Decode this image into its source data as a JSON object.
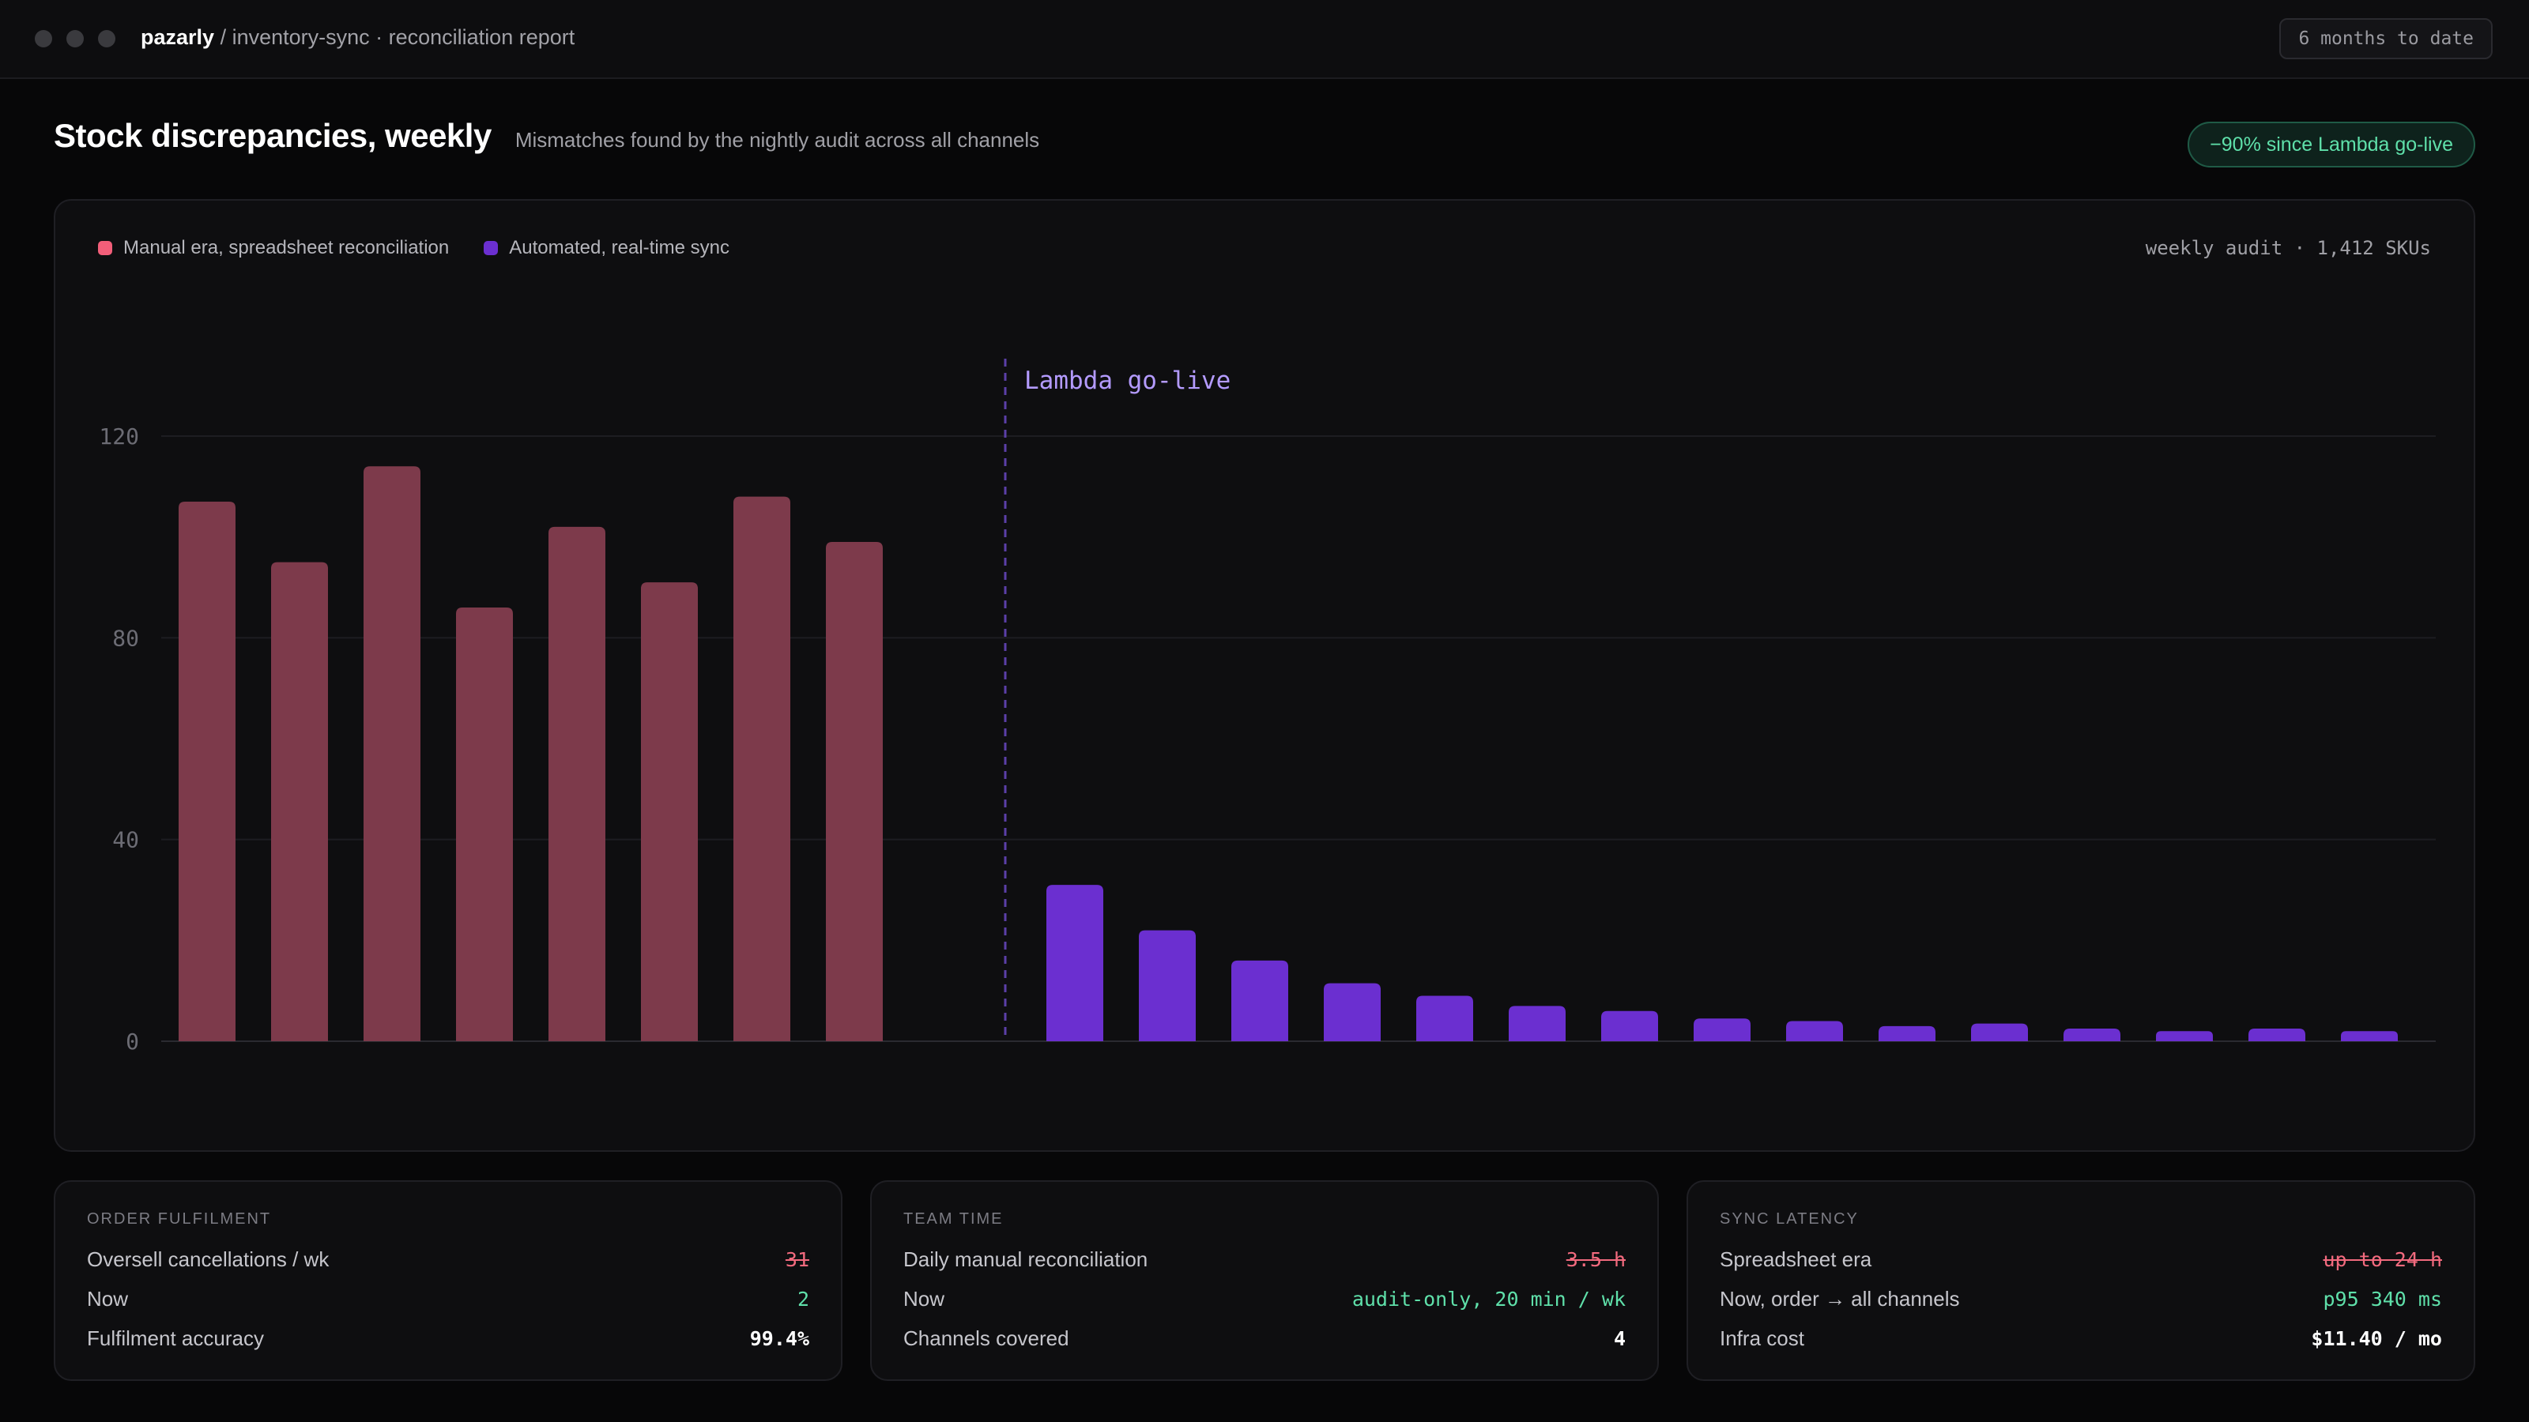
{
  "window": {
    "brand": "pazarly",
    "separator": " / ",
    "path": "inventory-sync · reconciliation report",
    "range": "6 months to date"
  },
  "header": {
    "title": "Stock discrepancies, weekly",
    "subtitle": "Mismatches found by the nightly audit across all channels",
    "badge": "−90% since Lambda go-live"
  },
  "chart_data": {
    "type": "bar",
    "legend": [
      {
        "label": "Manual era, spreadsheet reconciliation",
        "color": "#f25e79"
      },
      {
        "label": "Automated, real-time sync",
        "color": "#6b2fd0"
      }
    ],
    "note": "weekly audit · 1,412 SKUs",
    "annotation": "Lambda go-live",
    "ylim": [
      0,
      120
    ],
    "yticks": [
      0,
      40,
      80,
      120
    ],
    "grid": true,
    "series": [
      {
        "name": "Manual era, spreadsheet reconciliation",
        "values": [
          107,
          95,
          114,
          86,
          102,
          91,
          108,
          99
        ]
      },
      {
        "name": "Automated, real-time sync",
        "values": [
          31,
          22,
          16,
          11.5,
          9,
          7,
          6,
          4.5,
          4,
          3,
          3.5,
          2.5,
          2,
          2.5,
          2
        ]
      }
    ]
  },
  "stats": [
    {
      "title": "ORDER FULFILMENT",
      "rows": [
        {
          "label": "Oversell cancellations / wk",
          "value": "31",
          "style": "old"
        },
        {
          "label": "Now",
          "value": "2",
          "style": "good"
        },
        {
          "label": "Fulfilment accuracy",
          "value": "99.4%",
          "style": "plain"
        }
      ]
    },
    {
      "title": "TEAM TIME",
      "rows": [
        {
          "label": "Daily manual reconciliation",
          "value": "3.5 h",
          "style": "old"
        },
        {
          "label": "Now",
          "value": "audit-only, 20 min / wk",
          "style": "good"
        },
        {
          "label": "Channels covered",
          "value": "4",
          "style": "plain"
        }
      ]
    },
    {
      "title": "SYNC LATENCY",
      "rows": [
        {
          "label": "Spreadsheet era",
          "value": "up to 24 h",
          "style": "old"
        },
        {
          "label": "Now, order → all channels",
          "value": "p95 340 ms",
          "style": "good"
        },
        {
          "label": "Infra cost",
          "value": "$11.40 / mo",
          "style": "plain"
        }
      ]
    }
  ],
  "colors": {
    "manual_bar": "#7d3a4b",
    "auto_bar": "#6b2fd0",
    "annotation": "#b49bff",
    "accent_good": "#5fe0aa",
    "accent_bad": "#f26a7e"
  }
}
